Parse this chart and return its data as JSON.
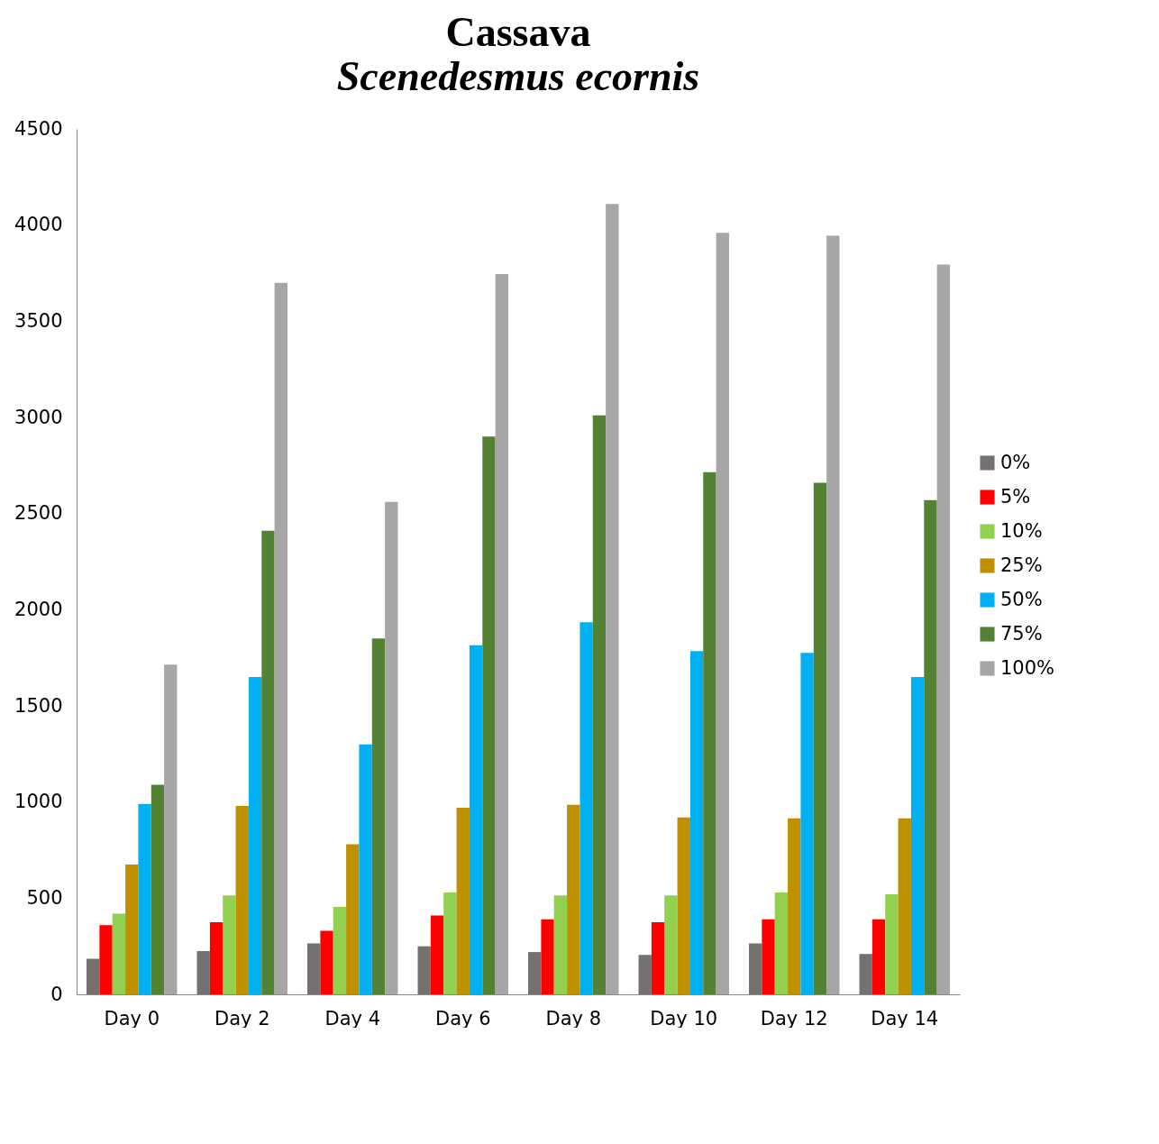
{
  "chart_data": {
    "type": "bar",
    "title": "Cassava",
    "subtitle": "Scenedesmus ecornis",
    "categories": [
      "Day 0",
      "Day 2",
      "Day 4",
      "Day 6",
      "Day 8",
      "Day 10",
      "Day 12",
      "Day 14"
    ],
    "series": [
      {
        "name": "0%",
        "color": "#767171",
        "values": [
          185,
          225,
          265,
          250,
          220,
          205,
          265,
          210
        ]
      },
      {
        "name": "5%",
        "color": "#ff0000",
        "values": [
          360,
          375,
          330,
          410,
          390,
          375,
          390,
          390
        ]
      },
      {
        "name": "10%",
        "color": "#92d050",
        "values": [
          420,
          515,
          455,
          530,
          515,
          515,
          530,
          520
        ]
      },
      {
        "name": "25%",
        "color": "#bf9000",
        "values": [
          675,
          980,
          780,
          970,
          985,
          920,
          915,
          915
        ]
      },
      {
        "name": "50%",
        "color": "#00b0f0",
        "values": [
          990,
          1650,
          1300,
          1815,
          1935,
          1785,
          1775,
          1650
        ]
      },
      {
        "name": "75%",
        "color": "#548235",
        "values": [
          1090,
          2410,
          1850,
          2900,
          3010,
          2715,
          2660,
          2570
        ]
      },
      {
        "name": "100%",
        "color": "#a6a6a6",
        "values": [
          1715,
          3700,
          2560,
          3745,
          4110,
          3960,
          3945,
          3795
        ]
      }
    ],
    "ylim": [
      0,
      4500
    ],
    "yticks": [
      0,
      500,
      1000,
      1500,
      2000,
      2500,
      3000,
      3500,
      4000,
      4500
    ],
    "legend": "right"
  }
}
